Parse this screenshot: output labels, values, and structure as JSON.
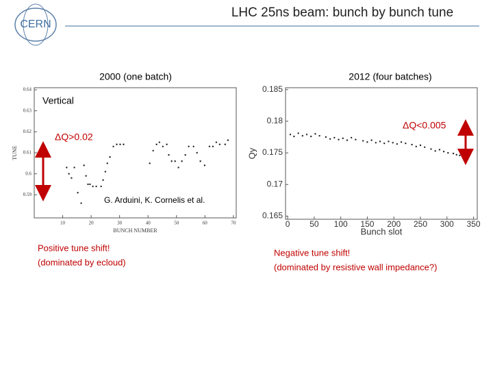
{
  "header": {
    "title": "LHC 25ns beam: bunch by bunch tune",
    "logo": "CERN"
  },
  "chart_data": [
    {
      "type": "scatter",
      "title": "2000 (one batch)",
      "x_label": "BUNCH NUMBER",
      "y_label": "TUNE",
      "xlim": [
        0,
        71
      ],
      "ylim": [
        0.579,
        0.641
      ],
      "xticks": [
        10,
        20,
        30,
        40,
        50,
        60,
        70
      ],
      "yticks": [
        0.59,
        0.6,
        0.61,
        0.62,
        0.63,
        0.64
      ],
      "color": "#222222",
      "annotations": [
        "Vertical",
        "ΔQ>0.02",
        "G. Arduini, K. Cornelis et al."
      ],
      "x": [
        11.4,
        12.2,
        13.1,
        14.1,
        15.3,
        16.5,
        17.5,
        18.2,
        18.9,
        19.6,
        20.6,
        21.8,
        23.5,
        24.2,
        25.0,
        25.7,
        26.6,
        27.8,
        29.0,
        30.2,
        31.4,
        40.6,
        41.8,
        43.0,
        44.0,
        45.2,
        46.6,
        47.3,
        48.3,
        49.5,
        50.7,
        51.9,
        53.1,
        54.3,
        56.0,
        57.2,
        58.4,
        59.9,
        61.6,
        62.8,
        64.0,
        65.2,
        67.1,
        68.1
      ],
      "values": [
        0.603,
        0.6,
        0.598,
        0.603,
        0.591,
        0.586,
        0.604,
        0.599,
        0.595,
        0.595,
        0.594,
        0.594,
        0.594,
        0.597,
        0.601,
        0.605,
        0.608,
        0.613,
        0.614,
        0.614,
        0.614,
        0.605,
        0.611,
        0.614,
        0.615,
        0.613,
        0.614,
        0.609,
        0.606,
        0.606,
        0.603,
        0.606,
        0.609,
        0.613,
        0.613,
        0.61,
        0.606,
        0.604,
        0.613,
        0.613,
        0.615,
        0.614,
        0.614,
        0.616
      ]
    },
    {
      "type": "scatter",
      "title": "2012 (four batches)",
      "x_label": "Bunch slot",
      "y_label": "Qy",
      "xlim": [
        -4,
        357
      ],
      "ylim": [
        0.1645,
        0.1853
      ],
      "xticks": [
        0,
        50,
        100,
        150,
        200,
        250,
        300,
        350
      ],
      "yticks": [
        0.165,
        0.17,
        0.175,
        0.18,
        0.185
      ],
      "color": "#222222",
      "annotations": [
        "ΔQ<0.005"
      ],
      "x": [
        5,
        12,
        20,
        28,
        36,
        44,
        52,
        60,
        72,
        80,
        88,
        96,
        104,
        112,
        120,
        128,
        142,
        150,
        158,
        166,
        174,
        182,
        190,
        198,
        206,
        214,
        222,
        234,
        242,
        250,
        258,
        270,
        278,
        286,
        294,
        302,
        312,
        318,
        324,
        330
      ],
      "values": [
        0.1779,
        0.1776,
        0.1781,
        0.1777,
        0.1779,
        0.1776,
        0.178,
        0.1777,
        0.1775,
        0.1772,
        0.1774,
        0.1771,
        0.1773,
        0.177,
        0.1774,
        0.1771,
        0.1769,
        0.1767,
        0.177,
        0.1766,
        0.1768,
        0.1765,
        0.1768,
        0.1766,
        0.1764,
        0.1767,
        0.1765,
        0.1763,
        0.176,
        0.1762,
        0.1759,
        0.1756,
        0.1753,
        0.1755,
        0.1752,
        0.175,
        0.1749,
        0.1747,
        0.1746,
        0.1744
      ]
    }
  ],
  "captions": [
    [
      "Positive tune shift!",
      "(dominated by ecloud)"
    ],
    [
      "Negative tune shift!",
      "(dominated by resistive wall impedance?)"
    ]
  ]
}
